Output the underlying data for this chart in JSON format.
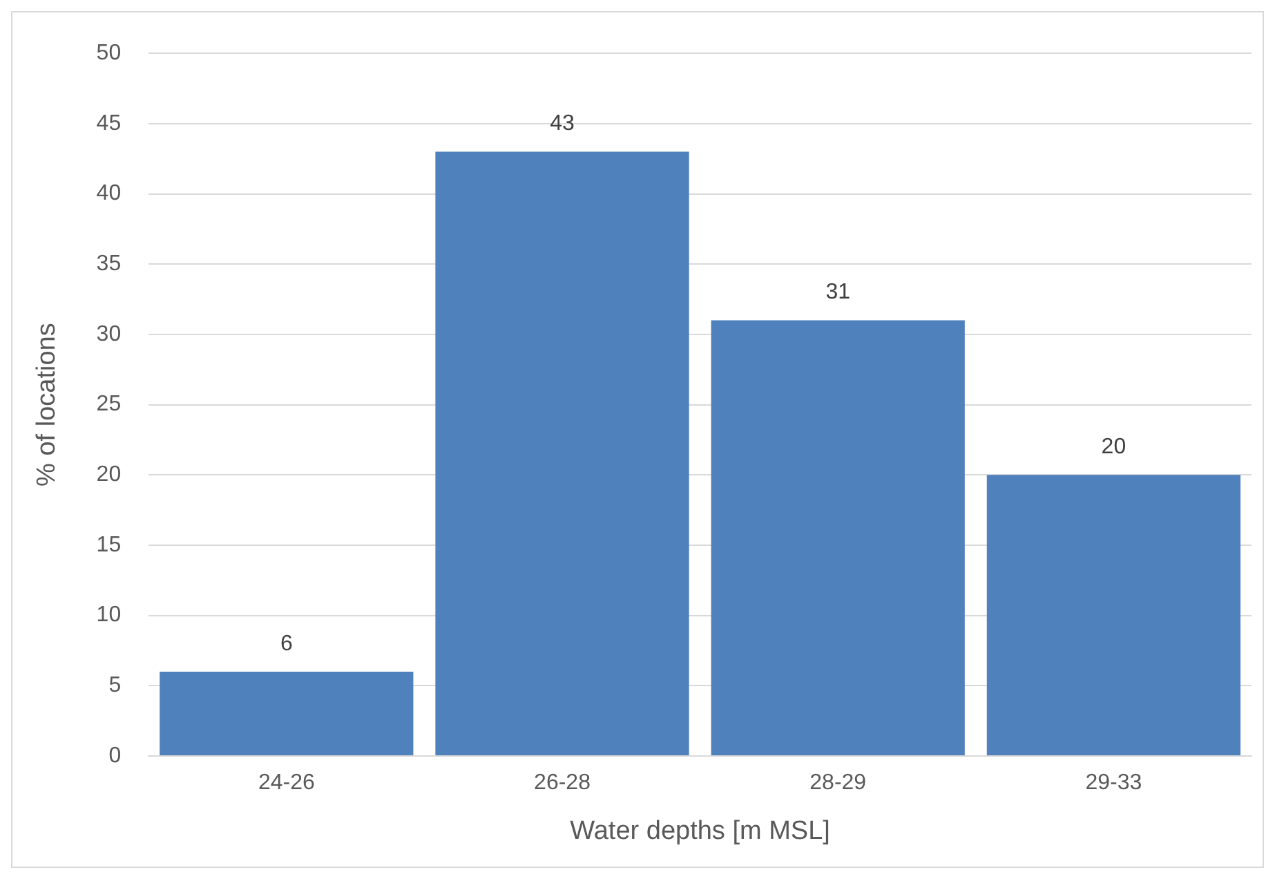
{
  "chart_data": {
    "type": "bar",
    "xlabel": "Water depths [m MSL]",
    "ylabel": "% of locations",
    "categories": [
      "24-26",
      "26-28",
      "28-29",
      "29-33"
    ],
    "values": [
      6,
      43,
      31,
      20
    ],
    "color": "#4f81bd",
    "ylim": [
      0,
      50
    ],
    "yticks": [
      0,
      5,
      10,
      15,
      20,
      25,
      30,
      35,
      40,
      45,
      50
    ],
    "grid": "y",
    "data_labels": true
  }
}
